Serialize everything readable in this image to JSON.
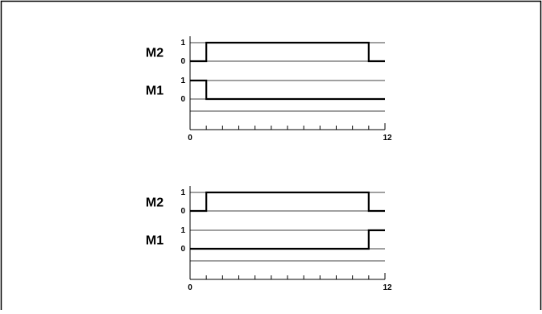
{
  "chart_data": [
    {
      "type": "line",
      "title": "",
      "xlabel": "",
      "ylabel": "",
      "xlim": [
        0,
        12
      ],
      "x_tick_labels": [
        "0",
        "12"
      ],
      "x_minor_ticks": 12,
      "step": true,
      "grid": true,
      "series": [
        {
          "name": "M2",
          "y_tick_labels": [
            "0",
            "1"
          ],
          "x": [
            0,
            1,
            11,
            12
          ],
          "values": [
            0,
            1,
            0,
            0
          ]
        },
        {
          "name": "M1",
          "y_tick_labels": [
            "0",
            "1"
          ],
          "x": [
            0,
            1,
            12
          ],
          "values": [
            1,
            0,
            0
          ]
        }
      ]
    },
    {
      "type": "line",
      "title": "",
      "xlabel": "",
      "ylabel": "",
      "xlim": [
        0,
        12
      ],
      "x_tick_labels": [
        "0",
        "12"
      ],
      "x_minor_ticks": 12,
      "step": true,
      "grid": true,
      "series": [
        {
          "name": "M2",
          "y_tick_labels": [
            "0",
            "1"
          ],
          "x": [
            0,
            1,
            11,
            12
          ],
          "values": [
            0,
            1,
            0,
            0
          ]
        },
        {
          "name": "M1",
          "y_tick_labels": [
            "0",
            "1"
          ],
          "x": [
            0,
            11,
            12
          ],
          "values": [
            0,
            1,
            1
          ]
        }
      ]
    }
  ]
}
